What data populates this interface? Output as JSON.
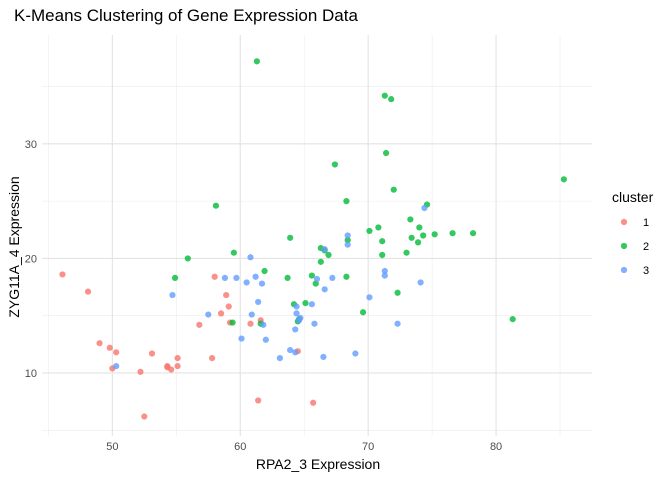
{
  "chart_data": {
    "type": "scatter",
    "title": "K-Means Clustering of Gene Expression Data",
    "xlabel": "RPA2_3 Expression",
    "ylabel": "ZYG11A_4 Expression",
    "xlim": [
      44.5,
      87.5
    ],
    "ylim": [
      4.5,
      39.5
    ],
    "x_ticks": [
      50,
      60,
      70,
      80
    ],
    "y_ticks": [
      10,
      20,
      30
    ],
    "grid": true,
    "legend": {
      "title": "cluster",
      "position": "right"
    },
    "series": [
      {
        "name": "1",
        "color": "#F8766D",
        "points": [
          [
            46.1,
            18.6
          ],
          [
            48.1,
            17.1
          ],
          [
            49.0,
            12.6
          ],
          [
            49.8,
            12.2
          ],
          [
            50.0,
            10.4
          ],
          [
            50.3,
            11.8
          ],
          [
            52.2,
            10.1
          ],
          [
            52.5,
            6.2
          ],
          [
            53.1,
            11.7
          ],
          [
            54.3,
            10.6
          ],
          [
            54.3,
            10.5
          ],
          [
            54.6,
            10.3
          ],
          [
            55.1,
            11.3
          ],
          [
            55.1,
            10.6
          ],
          [
            56.8,
            14.2
          ],
          [
            57.8,
            11.3
          ],
          [
            58.0,
            18.4
          ],
          [
            58.5,
            15.2
          ],
          [
            58.9,
            16.8
          ],
          [
            59.1,
            15.8
          ],
          [
            59.2,
            14.4
          ],
          [
            60.8,
            14.3
          ],
          [
            61.4,
            7.6
          ],
          [
            61.6,
            14.6
          ],
          [
            64.5,
            11.9
          ],
          [
            65.7,
            7.4
          ]
        ]
      },
      {
        "name": "2",
        "color": "#00BA38",
        "points": [
          [
            54.9,
            18.3
          ],
          [
            55.9,
            20.0
          ],
          [
            58.1,
            24.6
          ],
          [
            59.4,
            14.4
          ],
          [
            59.5,
            20.5
          ],
          [
            61.3,
            37.2
          ],
          [
            61.6,
            14.3
          ],
          [
            61.9,
            18.9
          ],
          [
            63.7,
            18.3
          ],
          [
            63.9,
            21.8
          ],
          [
            64.2,
            16.0
          ],
          [
            64.5,
            14.5
          ],
          [
            64.6,
            14.7
          ],
          [
            65.1,
            16.1
          ],
          [
            65.6,
            18.5
          ],
          [
            65.9,
            17.8
          ],
          [
            66.3,
            19.7
          ],
          [
            66.3,
            20.9
          ],
          [
            66.6,
            20.7
          ],
          [
            66.9,
            20.3
          ],
          [
            67.4,
            28.2
          ],
          [
            68.3,
            25.0
          ],
          [
            68.3,
            18.4
          ],
          [
            68.4,
            21.6
          ],
          [
            69.6,
            15.3
          ],
          [
            70.1,
            22.4
          ],
          [
            70.8,
            22.7
          ],
          [
            71.1,
            20.3
          ],
          [
            71.1,
            21.5
          ],
          [
            71.3,
            34.2
          ],
          [
            71.4,
            29.2
          ],
          [
            71.8,
            33.9
          ],
          [
            72.0,
            26.0
          ],
          [
            72.3,
            17.0
          ],
          [
            73.0,
            20.5
          ],
          [
            73.3,
            23.4
          ],
          [
            73.4,
            21.8
          ],
          [
            73.9,
            21.4
          ],
          [
            74.0,
            22.7
          ],
          [
            74.3,
            22.0
          ],
          [
            74.6,
            24.7
          ],
          [
            75.2,
            22.1
          ],
          [
            76.6,
            22.2
          ],
          [
            78.2,
            22.2
          ],
          [
            81.3,
            14.7
          ],
          [
            85.3,
            26.9
          ]
        ]
      },
      {
        "name": "3",
        "color": "#619CFF",
        "points": [
          [
            50.3,
            10.6
          ],
          [
            54.7,
            16.8
          ],
          [
            57.5,
            15.1
          ],
          [
            58.8,
            18.3
          ],
          [
            59.7,
            18.3
          ],
          [
            60.1,
            13.0
          ],
          [
            60.5,
            17.9
          ],
          [
            60.8,
            20.1
          ],
          [
            60.9,
            15.1
          ],
          [
            61.2,
            18.4
          ],
          [
            61.4,
            16.2
          ],
          [
            61.7,
            17.8
          ],
          [
            61.8,
            14.2
          ],
          [
            62.0,
            12.9
          ],
          [
            63.1,
            11.3
          ],
          [
            63.9,
            12.0
          ],
          [
            64.3,
            11.8
          ],
          [
            64.3,
            13.8
          ],
          [
            64.4,
            15.8
          ],
          [
            64.4,
            15.2
          ],
          [
            64.6,
            14.6
          ],
          [
            64.7,
            14.8
          ],
          [
            65.6,
            16.0
          ],
          [
            65.8,
            14.3
          ],
          [
            66.0,
            18.2
          ],
          [
            66.5,
            11.4
          ],
          [
            66.6,
            20.8
          ],
          [
            66.6,
            17.3
          ],
          [
            67.2,
            18.3
          ],
          [
            68.4,
            21.2
          ],
          [
            68.4,
            22.0
          ],
          [
            69.0,
            11.7
          ],
          [
            70.1,
            16.6
          ],
          [
            71.3,
            18.9
          ],
          [
            71.3,
            18.5
          ],
          [
            72.3,
            14.3
          ],
          [
            74.1,
            17.9
          ],
          [
            74.4,
            24.4
          ]
        ]
      }
    ]
  }
}
